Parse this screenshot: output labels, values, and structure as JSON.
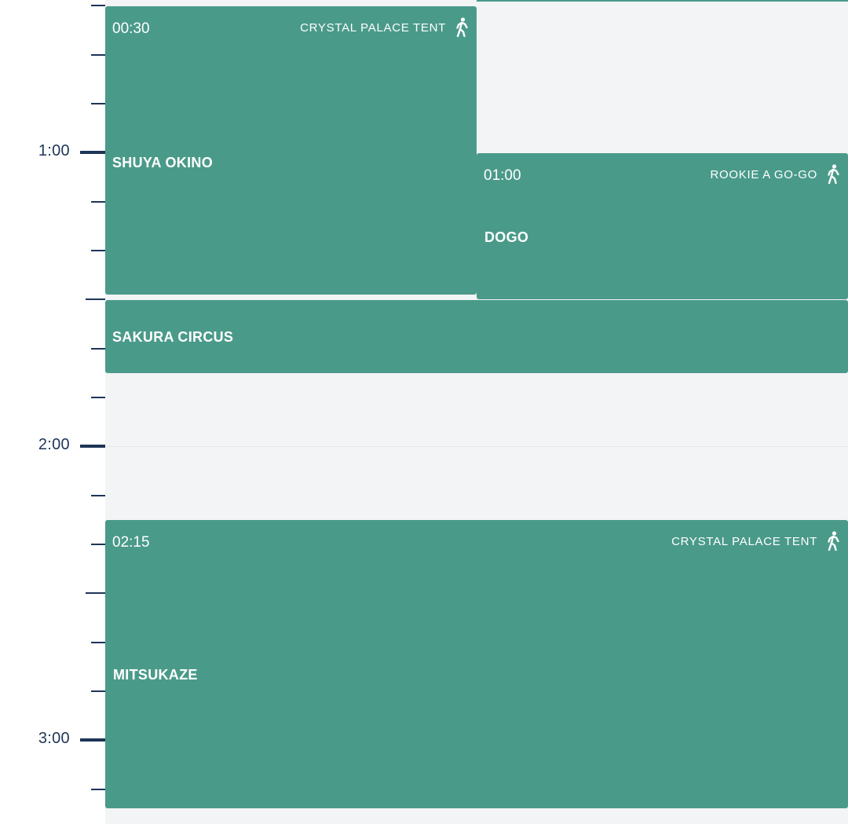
{
  "time_axis": {
    "hour_labels": [
      "1:00",
      "2:00",
      "3:00"
    ]
  },
  "events": [
    {
      "time": "00:30",
      "stage": "CRYSTAL PALACE TENT",
      "artist": "SHUYA OKINO",
      "icon": "walking-person-icon"
    },
    {
      "time": "01:00",
      "stage": "ROOKIE A GO-GO",
      "artist": "DOGO",
      "icon": "walking-person-icon"
    },
    {
      "time": "",
      "stage": "",
      "artist": "SAKURA CIRCUS",
      "icon": ""
    },
    {
      "time": "02:15",
      "stage": "CRYSTAL PALACE TENT",
      "artist": "MITSUKAZE",
      "icon": "walking-person-icon"
    }
  ],
  "colors": {
    "event_background": "#4a9a8a",
    "schedule_background": "#f2f4f6",
    "axis": "#1d3557",
    "event_text": "#ffffff"
  }
}
